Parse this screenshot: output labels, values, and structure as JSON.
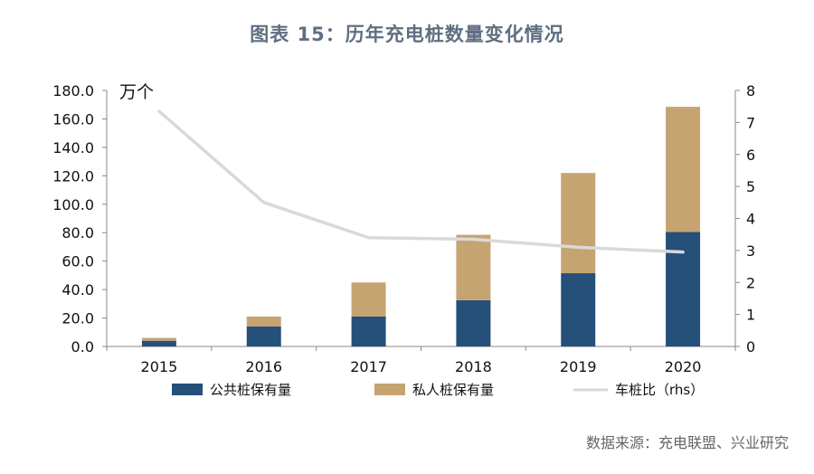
{
  "title": "图表 15：历年充电桩数量变化情况",
  "source": "数据来源：充电联盟、兴业研究",
  "chart_data": {
    "type": "bar",
    "stacked": true,
    "categories": [
      "2015",
      "2016",
      "2017",
      "2018",
      "2019",
      "2020"
    ],
    "series": [
      {
        "name": "公共桩保有量",
        "type": "bar",
        "axis": "left",
        "color": "#24507a",
        "values": [
          4.0,
          14.0,
          21.0,
          32.5,
          51.5,
          80.5
        ]
      },
      {
        "name": "私人桩保有量",
        "type": "bar",
        "axis": "left",
        "color": "#c5a472",
        "values": [
          2.0,
          7.0,
          24.0,
          46.0,
          70.5,
          88.0
        ]
      },
      {
        "name": "车桩比（rhs）",
        "type": "line",
        "axis": "right",
        "color": "#d9d9d9",
        "values": [
          7.35,
          4.5,
          3.4,
          3.35,
          3.1,
          2.95
        ]
      }
    ],
    "left_axis": {
      "unit": "万个",
      "min": 0,
      "max": 180,
      "step": 20,
      "decimals": 1
    },
    "right_axis": {
      "min": 0,
      "max": 8,
      "step": 1
    },
    "legend": "bottom",
    "grid": false
  }
}
